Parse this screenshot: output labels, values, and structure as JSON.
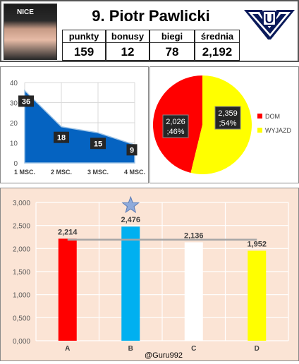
{
  "header": {
    "title": "9. Piotr Pawlicki",
    "stats": [
      {
        "label": "punkty",
        "value": "159"
      },
      {
        "label": "bonusy",
        "value": "12"
      },
      {
        "label": "biegi",
        "value": "78"
      },
      {
        "label": "średnia",
        "value": "2,192"
      }
    ],
    "photo_cap_text": "NICE",
    "logo_text": "U"
  },
  "footer": {
    "credit": "@Guru992"
  },
  "colors": {
    "area_blue": "#0563c1",
    "dom_red": "#ff0000",
    "wyjazd_yellow": "#ffff00",
    "bar_cyan": "#00b0f0",
    "bar_panel_bg": "#fbe4d5",
    "avg_line": "#a6a6a6",
    "star": "#8eaadb"
  },
  "chart_data": [
    {
      "type": "area",
      "categories": [
        "1 MSC.",
        "2 MSC.",
        "3 MSC.",
        "4 MSC."
      ],
      "values": [
        36,
        18,
        15,
        9
      ],
      "data_labels": [
        "36",
        "18",
        "15",
        "9"
      ],
      "yticks": [
        "0",
        "10",
        "20",
        "30",
        "40"
      ],
      "ylim": [
        0,
        40
      ],
      "grid": true
    },
    {
      "type": "pie",
      "slices": [
        {
          "name": "DOM",
          "value": 2.026,
          "percent": 46,
          "label": "2,026 ; 46%",
          "label_line1": "2,026",
          "label_line2": ";46%",
          "color": "#ff0000"
        },
        {
          "name": "WYJAZD",
          "value": 2.359,
          "percent": 54,
          "label": "2,359 ; 54%",
          "label_line1": "2,359",
          "label_line2": ";54%",
          "color": "#ffff00"
        }
      ],
      "legend_position": "right"
    },
    {
      "type": "bar",
      "categories": [
        "A",
        "B",
        "C",
        "D"
      ],
      "values": [
        2.214,
        2.476,
        2.136,
        1.952
      ],
      "data_labels": [
        "2,214",
        "2,476",
        "2,136",
        "1,952"
      ],
      "colors": [
        "#ff0000",
        "#00b0f0",
        "#ffffff",
        "#ffff00"
      ],
      "yticks": [
        "0,000",
        "0,500",
        "1,000",
        "1,500",
        "2,000",
        "2,500",
        "3,000"
      ],
      "ylim": [
        0,
        3.0
      ],
      "reference_line": 2.192,
      "highlight": "B",
      "grid": true
    }
  ]
}
